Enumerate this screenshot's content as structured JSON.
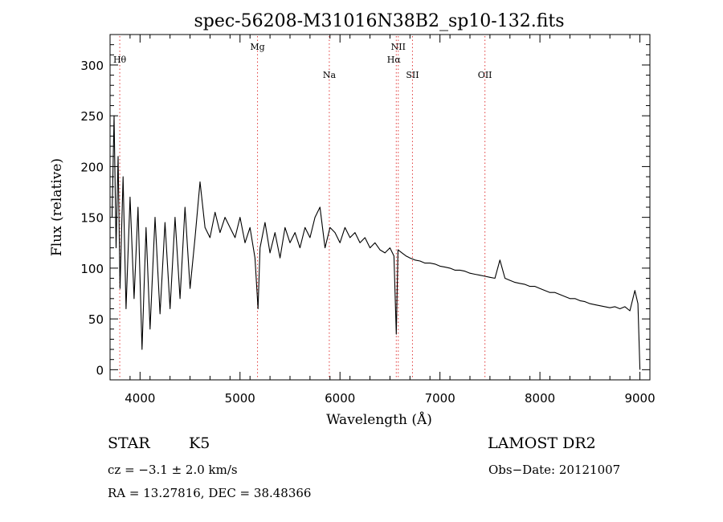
{
  "chart_data": {
    "type": "line",
    "title": "spec-56208-M31016N38B2_sp10-132.fits",
    "xlabel": "Wavelength (Å)",
    "ylabel": "Flux (relative)",
    "xlim": [
      3700,
      9100
    ],
    "ylim": [
      -10,
      330
    ],
    "x_ticks": [
      4000,
      5000,
      6000,
      7000,
      8000,
      9000
    ],
    "y_ticks": [
      0,
      50,
      100,
      150,
      200,
      250,
      300
    ],
    "grid": false,
    "series": [
      {
        "x": [
          3720,
          3740,
          3760,
          3780,
          3800,
          3830,
          3860,
          3900,
          3940,
          3980,
          4020,
          4060,
          4100,
          4150,
          4200,
          4250,
          4300,
          4350,
          4400,
          4450,
          4500,
          4550,
          4600,
          4650,
          4700,
          4750,
          4800,
          4850,
          4900,
          4950,
          5000,
          5050,
          5100,
          5150,
          5180,
          5200,
          5250,
          5300,
          5350,
          5400,
          5450,
          5500,
          5550,
          5600,
          5650,
          5700,
          5750,
          5800,
          5850,
          5900,
          5950,
          6000,
          6050,
          6100,
          6150,
          6200,
          6250,
          6300,
          6350,
          6400,
          6450,
          6500,
          6540,
          6563,
          6580,
          6620,
          6660,
          6700,
          6750,
          6800,
          6850,
          6900,
          6950,
          7000,
          7050,
          7100,
          7150,
          7200,
          7250,
          7300,
          7350,
          7400,
          7450,
          7500,
          7550,
          7600,
          7650,
          7700,
          7750,
          7800,
          7850,
          7900,
          7950,
          8000,
          8050,
          8100,
          8150,
          8200,
          8250,
          8300,
          8350,
          8400,
          8450,
          8500,
          8550,
          8600,
          8650,
          8700,
          8750,
          8800,
          8850,
          8900,
          8950,
          8980,
          9000
        ],
        "values": [
          150,
          250,
          120,
          210,
          80,
          190,
          60,
          170,
          70,
          160,
          20,
          140,
          40,
          150,
          55,
          145,
          60,
          150,
          70,
          160,
          80,
          130,
          185,
          140,
          130,
          155,
          135,
          150,
          140,
          130,
          150,
          125,
          140,
          110,
          60,
          120,
          145,
          115,
          135,
          110,
          140,
          125,
          135,
          120,
          140,
          130,
          150,
          160,
          120,
          140,
          135,
          125,
          140,
          130,
          135,
          125,
          130,
          120,
          125,
          118,
          115,
          120,
          112,
          35,
          118,
          115,
          112,
          110,
          108,
          107,
          105,
          105,
          104,
          102,
          101,
          100,
          98,
          98,
          97,
          95,
          94,
          93,
          92,
          91,
          90,
          108,
          90,
          88,
          86,
          85,
          84,
          82,
          82,
          80,
          78,
          76,
          76,
          74,
          72,
          70,
          70,
          68,
          67,
          65,
          64,
          63,
          62,
          61,
          62,
          60,
          62,
          58,
          78,
          65,
          0
        ]
      }
    ],
    "lines": [
      {
        "label": "Hθ",
        "x": 3797
      },
      {
        "label": "Mg",
        "x": 5175
      },
      {
        "label": "Na",
        "x": 5893
      },
      {
        "label": "NII",
        "x": 6583
      },
      {
        "label": "Hα",
        "x": 6563
      },
      {
        "label": "SII",
        "x": 6725
      },
      {
        "label": "OII",
        "x": 7450
      }
    ]
  },
  "caption": {
    "object_type": "STAR",
    "subclass": "K5",
    "survey": "LAMOST DR2",
    "cz": "cz = −3.1 ± 2.0 km/s",
    "obs_date": "Obs−Date: 20121007",
    "coords": "RA =  13.27816, DEC =  38.48366"
  }
}
